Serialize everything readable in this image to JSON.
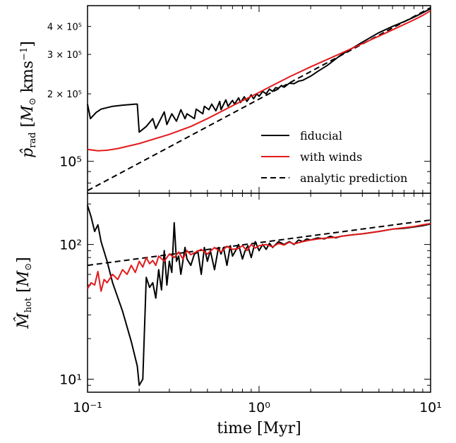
{
  "chart_data": [
    {
      "type": "line",
      "xscale": "log",
      "yscale": "log",
      "xlim": [
        0.1,
        10
      ],
      "ylim": [
        72000,
        495000
      ],
      "ylabel": "p̂rad [M⊙ kms⁻¹]",
      "yticks_major": [
        {
          "value": 100000,
          "label": "10⁵"
        }
      ],
      "yticks_minor": [
        {
          "value": 200000,
          "label": "2 × 10⁵"
        },
        {
          "value": 300000,
          "label": "3 × 10⁵"
        },
        {
          "value": 400000,
          "label": "4 × 10⁵"
        }
      ],
      "legend": {
        "location": "lower-right",
        "entries": [
          {
            "label": "fiducial",
            "color": "#000000",
            "style": "solid"
          },
          {
            "label": "with winds",
            "color": "#e31a1c",
            "style": "solid"
          },
          {
            "label": "analytic prediction",
            "color": "#000000",
            "style": "dashed"
          }
        ]
      },
      "series": [
        {
          "name": "fiducial",
          "color": "#000000",
          "style": "solid",
          "x": [
            0.1,
            0.104,
            0.112,
            0.12,
            0.14,
            0.16,
            0.19,
            0.195,
            0.2,
            0.22,
            0.24,
            0.25,
            0.28,
            0.29,
            0.31,
            0.33,
            0.35,
            0.37,
            0.38,
            0.42,
            0.43,
            0.47,
            0.48,
            0.51,
            0.53,
            0.56,
            0.59,
            0.6,
            0.64,
            0.66,
            0.7,
            0.72,
            0.76,
            0.78,
            0.82,
            0.85,
            0.9,
            0.93,
            0.97,
            1.0,
            1.05,
            1.1,
            1.15,
            1.2,
            1.25,
            1.3,
            1.35,
            1.4,
            1.5,
            1.6,
            1.7,
            1.8,
            2.0,
            2.2,
            2.5,
            3.0,
            4.0,
            5.0,
            6.0,
            7.0,
            8.0,
            9.0,
            10.0
          ],
          "y": [
            180000,
            155000,
            165000,
            171000,
            176000,
            178000,
            180000,
            180000,
            135000,
            143000,
            155000,
            140000,
            166000,
            146000,
            163000,
            151000,
            170000,
            155000,
            163000,
            155000,
            171000,
            163000,
            176000,
            170000,
            180000,
            168000,
            185000,
            170000,
            188000,
            176000,
            187000,
            180000,
            192000,
            183000,
            194000,
            185000,
            198000,
            190000,
            200000,
            195000,
            205000,
            200000,
            210000,
            205000,
            213000,
            212000,
            218000,
            214000,
            223000,
            222000,
            228000,
            230000,
            240000,
            252000,
            268000,
            298000,
            340000,
            375000,
            400000,
            420000,
            440000,
            460000,
            480000
          ]
        },
        {
          "name": "with winds",
          "color": "#e31a1c",
          "style": "solid",
          "x": [
            0.1,
            0.115,
            0.13,
            0.15,
            0.2,
            0.3,
            0.4,
            0.5,
            0.7,
            1.0,
            1.5,
            2.0,
            3.0,
            4.0,
            5.0,
            6.0,
            7.0,
            8.0,
            9.0,
            10.0
          ],
          "y": [
            113000,
            111500,
            112000,
            114000,
            120000,
            132000,
            143000,
            155000,
            177000,
            203000,
            238000,
            264000,
            303000,
            335000,
            362000,
            386000,
            408000,
            428000,
            448000,
            470000
          ]
        },
        {
          "name": "analytic prediction",
          "color": "#000000",
          "style": "dashed",
          "x": [
            0.1,
            10.0
          ],
          "y": [
            74000,
            485000
          ]
        }
      ]
    },
    {
      "type": "line",
      "xscale": "log",
      "yscale": "log",
      "xlim": [
        0.1,
        10
      ],
      "ylim": [
        8,
        240
      ],
      "xlabel": "time [Myr]",
      "ylabel": "M̂hot [M⊙]",
      "xticks": [
        {
          "value": 0.1,
          "label": "10⁻¹"
        },
        {
          "value": 1,
          "label": "10⁰"
        },
        {
          "value": 10,
          "label": "10¹"
        }
      ],
      "yticks_major": [
        {
          "value": 10,
          "label": "10¹"
        },
        {
          "value": 100,
          "label": "10²"
        }
      ],
      "series": [
        {
          "name": "fiducial",
          "color": "#000000",
          "style": "solid",
          "x": [
            0.1,
            0.105,
            0.11,
            0.115,
            0.12,
            0.13,
            0.14,
            0.16,
            0.18,
            0.195,
            0.2,
            0.21,
            0.22,
            0.23,
            0.24,
            0.25,
            0.26,
            0.27,
            0.28,
            0.29,
            0.3,
            0.31,
            0.32,
            0.33,
            0.34,
            0.35,
            0.37,
            0.38,
            0.4,
            0.42,
            0.44,
            0.46,
            0.48,
            0.5,
            0.52,
            0.55,
            0.58,
            0.6,
            0.62,
            0.65,
            0.68,
            0.7,
            0.73,
            0.76,
            0.8,
            0.83,
            0.86,
            0.9,
            0.95,
            1.0,
            1.05,
            1.1,
            1.15,
            1.2,
            1.3,
            1.4,
            1.5,
            1.6,
            1.7,
            1.8,
            1.9,
            2.0,
            2.2,
            2.4,
            2.6,
            2.8,
            3.0,
            3.5,
            4.0,
            5.0,
            6.0,
            7.0,
            8.0,
            9.0,
            10.0
          ],
          "y": [
            195,
            160,
            125,
            140,
            105,
            75,
            52,
            32,
            19,
            12.5,
            9,
            10,
            57,
            48,
            52,
            40,
            65,
            46,
            90,
            50,
            75,
            62,
            145,
            75,
            82,
            60,
            95,
            78,
            70,
            85,
            88,
            60,
            95,
            75,
            90,
            65,
            95,
            85,
            95,
            70,
            98,
            82,
            90,
            100,
            78,
            90,
            98,
            80,
            105,
            90,
            100,
            92,
            102,
            95,
            105,
            100,
            105,
            100,
            108,
            105,
            110,
            108,
            112,
            110,
            115,
            112,
            115,
            118,
            120,
            125,
            130,
            132,
            135,
            138,
            142
          ]
        },
        {
          "name": "with winds",
          "color": "#e31a1c",
          "style": "solid",
          "x": [
            0.1,
            0.105,
            0.11,
            0.115,
            0.12,
            0.125,
            0.13,
            0.14,
            0.15,
            0.16,
            0.17,
            0.18,
            0.19,
            0.2,
            0.21,
            0.22,
            0.23,
            0.24,
            0.25,
            0.26,
            0.28,
            0.3,
            0.32,
            0.34,
            0.36,
            0.38,
            0.4,
            0.43,
            0.46,
            0.5,
            0.55,
            0.6,
            0.65,
            0.7,
            0.75,
            0.8,
            0.85,
            0.9,
            0.95,
            1.0,
            1.1,
            1.2,
            1.3,
            1.4,
            1.5,
            1.6,
            1.8,
            2.0,
            2.2,
            2.5,
            2.8,
            3.0,
            3.5,
            4.0,
            5.0,
            6.0,
            7.0,
            8.0,
            9.0,
            10.0
          ],
          "y": [
            47,
            52,
            50,
            63,
            45,
            55,
            52,
            60,
            55,
            65,
            60,
            70,
            62,
            75,
            68,
            80,
            72,
            76,
            70,
            82,
            75,
            85,
            80,
            88,
            78,
            90,
            84,
            88,
            92,
            85,
            95,
            88,
            97,
            92,
            93,
            98,
            90,
            100,
            94,
            98,
            100,
            96,
            102,
            99,
            104,
            101,
            105,
            108,
            110,
            112,
            113,
            115,
            118,
            120,
            125,
            130,
            133,
            136,
            140,
            143
          ]
        },
        {
          "name": "analytic prediction",
          "color": "#000000",
          "style": "dashed",
          "x": [
            0.1,
            10.0
          ],
          "y": [
            70,
            152
          ]
        }
      ]
    }
  ]
}
